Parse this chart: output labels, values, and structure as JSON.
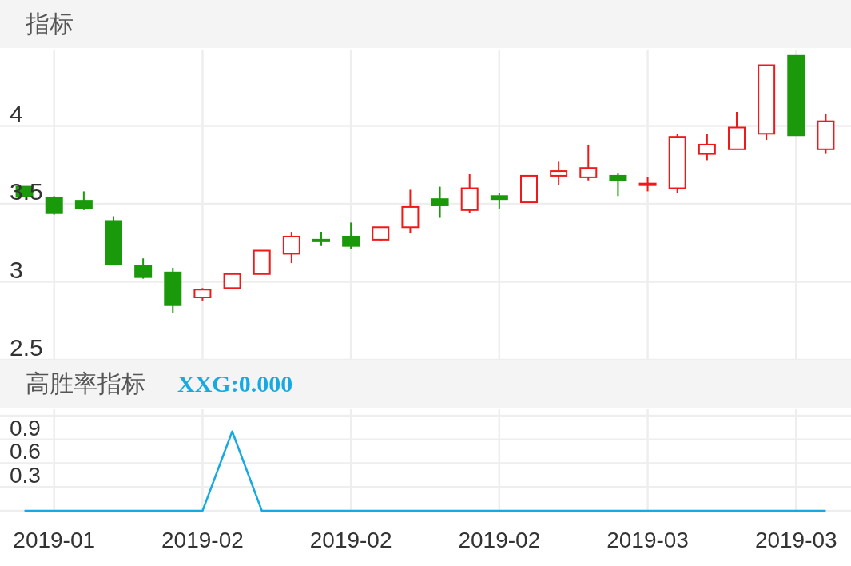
{
  "chart_data": [
    {
      "type": "candlestick",
      "title": "指标",
      "categories": [
        null,
        "2019-01",
        null,
        null,
        null,
        null,
        "2019-02",
        null,
        null,
        null,
        null,
        "2019-02",
        null,
        null,
        null,
        null,
        "2019-02",
        null,
        null,
        null,
        null,
        "2019-03",
        null,
        null,
        null,
        null,
        "2019-03",
        null
      ],
      "ohlc": [
        [
          3.61,
          3.61,
          3.55,
          3.55
        ],
        [
          3.54,
          3.55,
          3.43,
          3.44
        ],
        [
          3.52,
          3.58,
          3.46,
          3.47
        ],
        [
          3.39,
          3.42,
          3.11,
          3.11
        ],
        [
          3.1,
          3.15,
          3.02,
          3.03
        ],
        [
          3.06,
          3.09,
          2.8,
          2.85
        ],
        [
          2.9,
          2.96,
          2.88,
          2.95
        ],
        [
          2.96,
          3.05,
          2.96,
          3.05
        ],
        [
          3.05,
          3.2,
          3.05,
          3.2
        ],
        [
          3.18,
          3.32,
          3.12,
          3.29
        ],
        [
          3.27,
          3.32,
          3.23,
          3.26
        ],
        [
          3.29,
          3.38,
          3.21,
          3.23
        ],
        [
          3.27,
          3.35,
          3.26,
          3.35
        ],
        [
          3.35,
          3.59,
          3.31,
          3.48
        ],
        [
          3.53,
          3.61,
          3.41,
          3.49
        ],
        [
          3.46,
          3.69,
          3.44,
          3.6
        ],
        [
          3.55,
          3.57,
          3.47,
          3.53
        ],
        [
          3.51,
          3.68,
          3.51,
          3.68
        ],
        [
          3.68,
          3.77,
          3.62,
          3.71
        ],
        [
          3.67,
          3.88,
          3.65,
          3.73
        ],
        [
          3.68,
          3.7,
          3.55,
          3.65
        ],
        [
          3.62,
          3.67,
          3.58,
          3.63
        ],
        [
          3.6,
          3.95,
          3.57,
          3.93
        ],
        [
          3.82,
          3.95,
          3.78,
          3.88
        ],
        [
          3.85,
          4.09,
          3.85,
          3.99
        ],
        [
          3.95,
          4.39,
          3.91,
          4.39
        ],
        [
          4.45,
          4.45,
          3.94,
          3.94
        ],
        [
          3.85,
          4.08,
          3.82,
          4.03
        ]
      ],
      "colors": [
        "#1a9a0a",
        "#1a9a0a",
        "#1a9a0a",
        "#1a9a0a",
        "#1a9a0a",
        "#1a9a0a",
        "#f01818",
        "#f01818",
        "#f01818",
        "#f01818",
        "#1a9a0a",
        "#1a9a0a",
        "#f01818",
        "#f01818",
        "#1a9a0a",
        "#f01818",
        "#1a9a0a",
        "#f01818",
        "#f01818",
        "#f01818",
        "#1a9a0a",
        "#f01818",
        "#f01818",
        "#f01818",
        "#f01818",
        "#f01818",
        "#1a9a0a",
        "#f01818"
      ],
      "ylim": [
        2.5,
        4.49
      ],
      "yticks": [
        2.5,
        3,
        3.5,
        4
      ],
      "grid": true,
      "tick_labels": "y"
    },
    {
      "type": "line",
      "title": "高胜率指标",
      "subtitle": "XXG:0.000",
      "categories": [
        null,
        "2019-01",
        null,
        null,
        null,
        null,
        "2019-02",
        null,
        null,
        null,
        null,
        "2019-02",
        null,
        null,
        null,
        null,
        "2019-02",
        null,
        null,
        null,
        null,
        "2019-03",
        null,
        null,
        null,
        null,
        "2019-03",
        null
      ],
      "series": [
        {
          "color": "#17a9e3",
          "values": [
            0,
            0,
            0,
            0,
            0,
            0,
            0,
            1,
            0,
            0,
            0,
            0,
            0,
            0,
            0,
            0,
            0,
            0,
            0,
            0,
            0,
            0,
            0,
            0,
            0,
            0,
            0,
            0
          ]
        }
      ],
      "ylim": [
        0,
        1.28
      ],
      "yticks": [
        {
          "value": 0,
          "label": null
        },
        0.3,
        0.6,
        0.9,
        {
          "value": 1.2,
          "label": null
        }
      ],
      "grid": true
    }
  ]
}
